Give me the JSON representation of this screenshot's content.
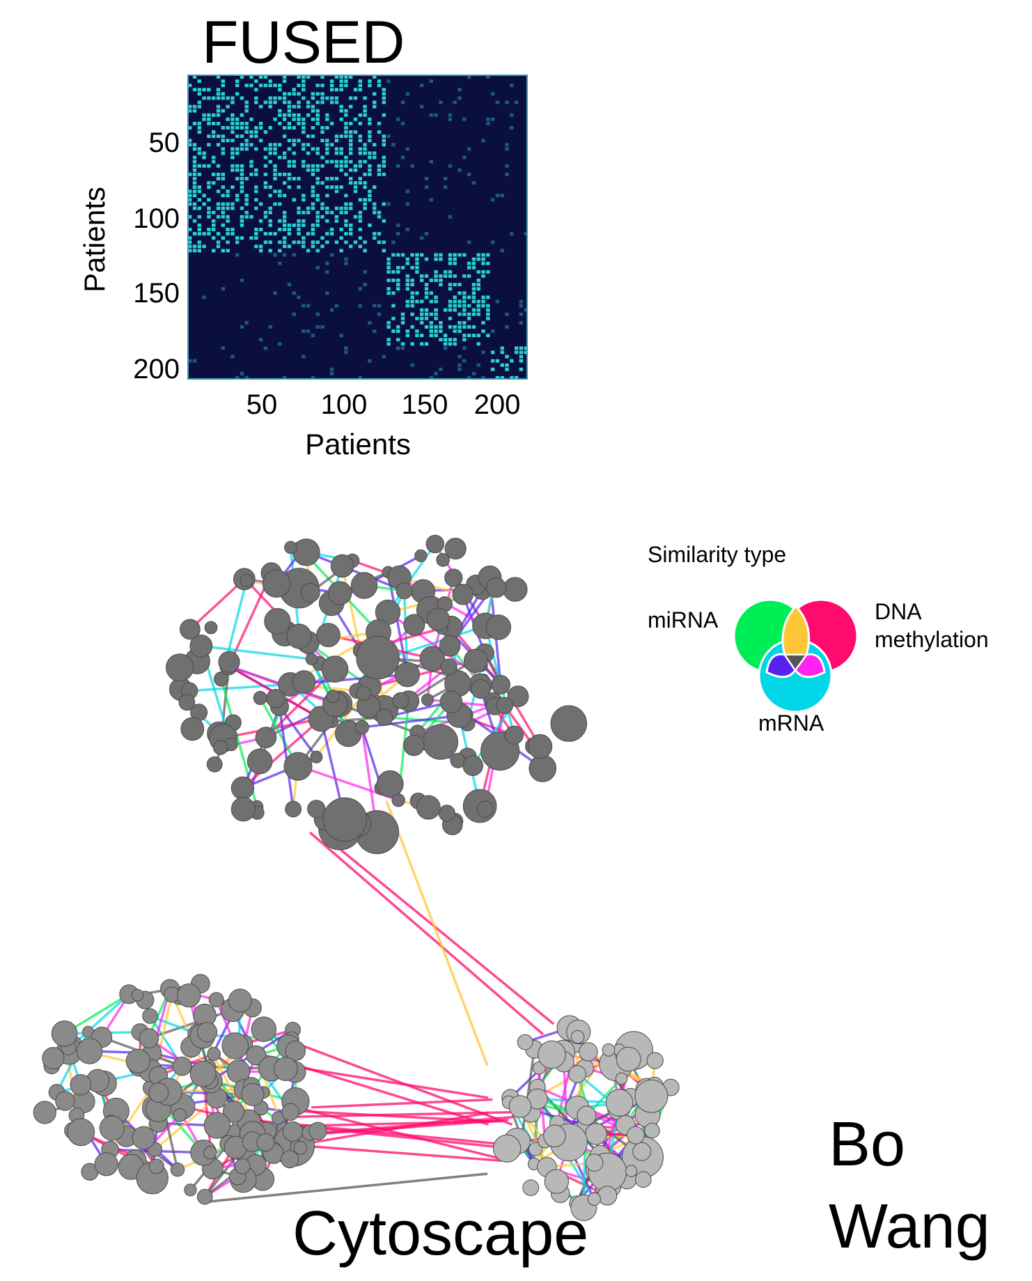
{
  "heatmap": {
    "title": "FUSED",
    "ylabel": "Patients",
    "xlabel": "Patients",
    "yticks": [
      "50",
      "100",
      "150",
      "200"
    ],
    "xticks": [
      "50",
      "100",
      "150",
      "200"
    ],
    "colors": {
      "background": "#0a0f3e",
      "highlight": "#2ee6e6",
      "border": "#3aa0b8"
    }
  },
  "chart_data": {
    "type": "heatmap",
    "title": "FUSED",
    "xlabel": "Patients",
    "ylabel": "Patients",
    "n_patients": 215,
    "xticks": [
      50,
      100,
      150,
      200
    ],
    "yticks": [
      50,
      100,
      150,
      200
    ],
    "clusters": [
      {
        "start": 1,
        "end": 125
      },
      {
        "start": 126,
        "end": 192
      },
      {
        "start": 193,
        "end": 215
      }
    ]
  },
  "legend": {
    "title": "Similarity type",
    "mirna": "miRNA",
    "dna_line1": "DNA",
    "dna_line2": "methylation",
    "mrna": "mRNA",
    "colors": {
      "mirna": "#00ee55",
      "dna": "#ff0a6e",
      "mrna": "#00d6e6",
      "mirna_dna": "#ffc735",
      "mirna_mrna": "#5522ee",
      "dna_mrna": "#ff22ee",
      "all": "#555555"
    }
  },
  "network": {
    "node_color_cluster1": "#707070",
    "node_color_cluster2": "#8a8a8a",
    "node_color_cluster3": "#b8b8b8",
    "edge_colors": [
      "#00ee55",
      "#ff0a6e",
      "#00d6e6",
      "#ffc735",
      "#5522ee",
      "#ff22ee",
      "#555555"
    ]
  },
  "caption": "Cytoscape",
  "author_line1": "Bo",
  "author_line2": "Wang"
}
